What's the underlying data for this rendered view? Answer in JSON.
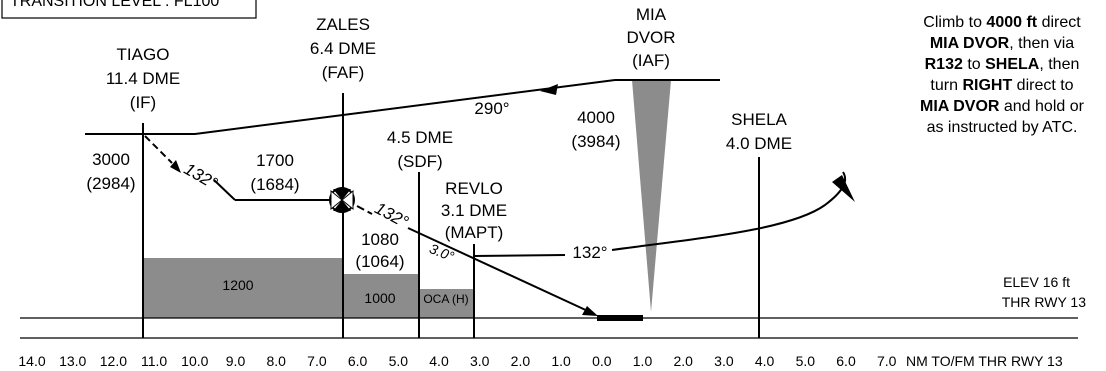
{
  "transition_level": "TRANSITION LEVEL : FL100",
  "instructions": {
    "lines": [
      [
        {
          "t": "Climb to ",
          "b": false
        },
        {
          "t": "4000 ft",
          "b": true
        },
        {
          "t": " direct",
          "b": false
        }
      ],
      [
        {
          "t": "MIA DVOR",
          "b": true
        },
        {
          "t": ", then via",
          "b": false
        }
      ],
      [
        {
          "t": "R132",
          "b": true
        },
        {
          "t": " to ",
          "b": false
        },
        {
          "t": "SHELA",
          "b": true
        },
        {
          "t": ", then",
          "b": false
        }
      ],
      [
        {
          "t": "turn ",
          "b": false
        },
        {
          "t": "RIGHT",
          "b": true
        },
        {
          "t": " direct to",
          "b": false
        }
      ],
      [
        {
          "t": "MIA DVOR",
          "b": true
        },
        {
          "t": " and hold or",
          "b": false
        }
      ],
      [
        {
          "t": "as instructed by ATC.",
          "b": false
        }
      ]
    ]
  },
  "fixes": {
    "tiago": {
      "name": "TIAGO",
      "dme": "11.4 DME",
      "role": "(IF)"
    },
    "zales": {
      "name": "ZALES",
      "dme": "6.4 DME",
      "role": "(FAF)"
    },
    "mia": {
      "name": "MIA",
      "type": "DVOR",
      "role": "(IAF)"
    },
    "sdf": {
      "dme": "4.5 DME",
      "role": "(SDF)"
    },
    "revlo": {
      "name": "REVLO",
      "dme": "3.1 DME",
      "role": "(MAPT)"
    },
    "shela": {
      "name": "SHELA",
      "dme": "4.0 DME"
    }
  },
  "altitudes": {
    "tiago": {
      "alt": "3000",
      "height": "(2984)"
    },
    "zales": {
      "alt": "1700",
      "height": "(1684)"
    },
    "sdf": {
      "alt": "1080",
      "height": "(1064)"
    },
    "mia": {
      "alt": "4000",
      "height": "(3984)"
    }
  },
  "courses": {
    "outbound": "290°",
    "inbound_1": "132°",
    "inbound_2": "132°",
    "missed": "132°"
  },
  "glidepath": "3.0°",
  "obstacle_blocks": {
    "block1": "1200",
    "block2": "1000",
    "oca": "OCA (H)"
  },
  "aerodrome": {
    "elev": "ELEV 16 ft",
    "thr": "THR RWY 13"
  },
  "axis": {
    "ticks": [
      "14.0",
      "13.0",
      "12.0",
      "11.0",
      "10.0",
      "9.0",
      "8.0",
      "7.0",
      "6.0",
      "5.0",
      "4.0",
      "3.0",
      "2.0",
      "1.0",
      "0.0",
      "1.0",
      "2.0",
      "3.0",
      "4.0",
      "5.0",
      "6.0",
      "7.0"
    ],
    "label": "NM TO/FM THR RWY 13"
  },
  "colors": {
    "fill": "#8c8c8c",
    "line": "#000000"
  }
}
